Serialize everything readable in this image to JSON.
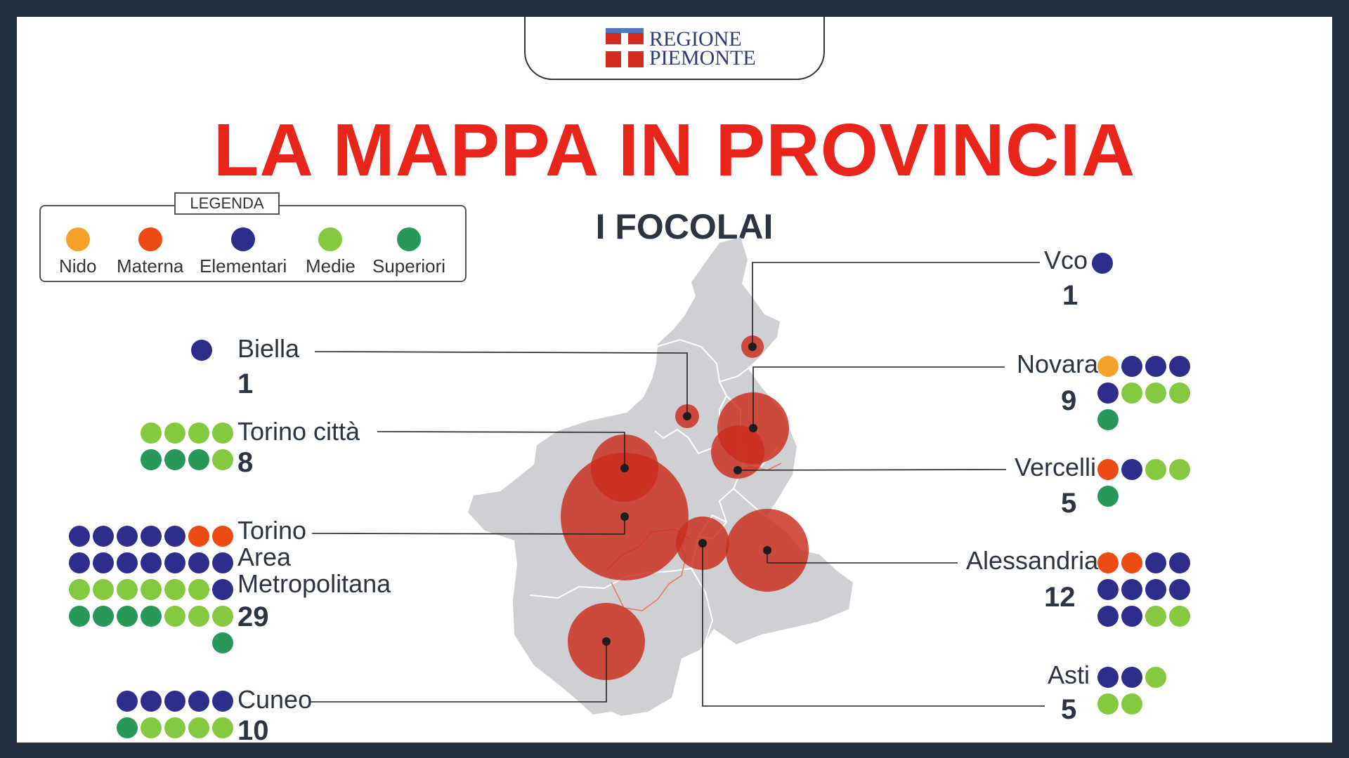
{
  "header": {
    "logo_line1": "REGIONE",
    "logo_line2": "PIEMONTE",
    "title": "LA MAPPA IN PROVINCIA",
    "subtitle": "I FOCOLAI"
  },
  "legend": {
    "title": "LEGENDA",
    "items": [
      {
        "label": "Nido",
        "color": "#f6a12a"
      },
      {
        "label": "Materna",
        "color": "#ee4a14"
      },
      {
        "label": "Elementari",
        "color": "#2d2e8c"
      },
      {
        "label": "Medie",
        "color": "#84c940"
      },
      {
        "label": "Superiori",
        "color": "#27985a"
      }
    ]
  },
  "colors": {
    "map_fill": "#cfd0d4",
    "bubble": "#cb2c1c",
    "title": "#e8241b",
    "text": "#2b3440"
  },
  "provinces": [
    {
      "name_lines": [
        "Vco"
      ],
      "count": 1,
      "schools": {
        "nido": 0,
        "materna": 0,
        "elementari": 1,
        "medie": 0,
        "superiori": 0
      }
    },
    {
      "name_lines": [
        "Biella"
      ],
      "count": 1,
      "schools": {
        "nido": 0,
        "materna": 0,
        "elementari": 1,
        "medie": 0,
        "superiori": 0
      }
    },
    {
      "name_lines": [
        "Novara"
      ],
      "count": 9,
      "schools": {
        "nido": 1,
        "materna": 0,
        "elementari": 4,
        "medie": 3,
        "superiori": 1
      }
    },
    {
      "name_lines": [
        "Torino città"
      ],
      "count": 8,
      "schools": {
        "nido": 0,
        "materna": 0,
        "elementari": 0,
        "medie": 5,
        "superiori": 3
      }
    },
    {
      "name_lines": [
        "Vercelli"
      ],
      "count": 5,
      "schools": {
        "nido": 0,
        "materna": 1,
        "elementari": 1,
        "medie": 2,
        "superiori": 1
      }
    },
    {
      "name_lines": [
        "Torino",
        "Area",
        "Metropolitana"
      ],
      "count": 29,
      "schools": {
        "nido": 0,
        "materna": 2,
        "elementari": 13,
        "medie": 9,
        "superiori": 5
      }
    },
    {
      "name_lines": [
        "Alessandria"
      ],
      "count": 12,
      "schools": {
        "nido": 0,
        "materna": 2,
        "elementari": 8,
        "medie": 2,
        "superiori": 0
      }
    },
    {
      "name_lines": [
        "Cuneo"
      ],
      "count": 10,
      "schools": {
        "nido": 0,
        "materna": 0,
        "elementari": 5,
        "medie": 4,
        "superiori": 1
      }
    },
    {
      "name_lines": [
        "Asti"
      ],
      "count": 5,
      "schools": {
        "nido": 0,
        "materna": 0,
        "elementari": 2,
        "medie": 3,
        "superiori": 0
      }
    }
  ]
}
